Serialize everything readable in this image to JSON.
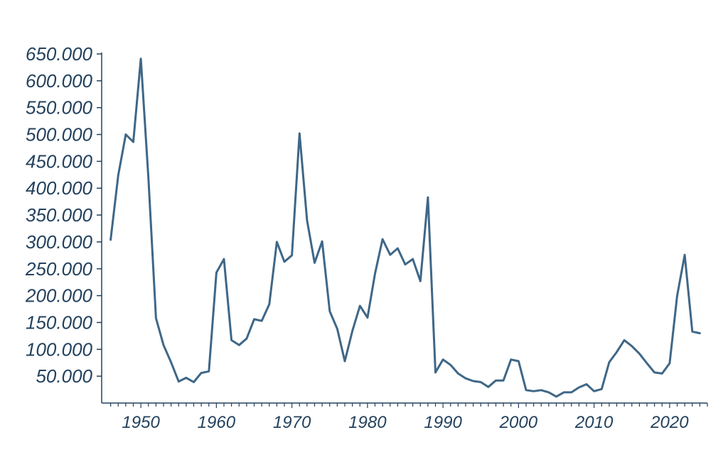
{
  "chart_data": {
    "type": "line",
    "title": "",
    "xlabel": "",
    "ylabel": "",
    "xlim": [
      1945,
      2025
    ],
    "ylim": [
      0,
      650000
    ],
    "grid": false,
    "legend": "none",
    "colors": {
      "line": "#3f6787",
      "axis": "#24425e",
      "ticklabel": "#24425e"
    },
    "xticks": [
      1950,
      1960,
      1970,
      1980,
      1990,
      2000,
      2010,
      2020
    ],
    "xtick_labels": [
      "1950",
      "1960",
      "1970",
      "1980",
      "1990",
      "2000",
      "2010",
      "2020"
    ],
    "yticks": [
      50000,
      100000,
      150000,
      200000,
      250000,
      300000,
      350000,
      400000,
      450000,
      500000,
      550000,
      600000,
      650000
    ],
    "ytick_labels": [
      "50.000",
      "100.000",
      "150.000",
      "200.000",
      "250.000",
      "300.000",
      "350.000",
      "400.000",
      "450.000",
      "500.000",
      "550.000",
      "600.000",
      "650.000"
    ],
    "series": [
      {
        "x": [
          1946,
          1947,
          1948,
          1949,
          1950,
          1951,
          1952,
          1953,
          1954,
          1955,
          1956,
          1957,
          1958,
          1959,
          1960,
          1961,
          1962,
          1963,
          1964,
          1965,
          1966,
          1967,
          1968,
          1969,
          1970,
          1971,
          1972,
          1973,
          1974,
          1975,
          1976,
          1977,
          1978,
          1979,
          1980,
          1981,
          1982,
          1983,
          1984,
          1985,
          1986,
          1987,
          1988,
          1989,
          1990,
          1991,
          1992,
          1993,
          1994,
          1995,
          1996,
          1997,
          1998,
          1999,
          2000,
          2001,
          2002,
          2003,
          2004,
          2005,
          2006,
          2007,
          2008,
          2009,
          2010,
          2011,
          2012,
          2013,
          2014,
          2015,
          2016,
          2017,
          2018,
          2019,
          2020,
          2021,
          2022,
          2023,
          2024
        ],
        "values": [
          304000,
          424000,
          500000,
          486000,
          641000,
          418000,
          158000,
          108000,
          76000,
          40000,
          47000,
          39000,
          56000,
          59000,
          243000,
          268000,
          117000,
          108000,
          120000,
          156000,
          153000,
          184000,
          300000,
          263000,
          275000,
          502000,
          340000,
          261000,
          301000,
          171000,
          138000,
          78000,
          134000,
          181000,
          159000,
          241000,
          305000,
          276000,
          288000,
          258000,
          268000,
          227000,
          383000,
          57000,
          81000,
          71000,
          55000,
          46000,
          41000,
          39000,
          30000,
          42000,
          42000,
          81000,
          78000,
          24000,
          22000,
          24000,
          20000,
          12000,
          20000,
          20000,
          29000,
          35000,
          22000,
          26000,
          76000,
          95000,
          117000,
          106000,
          92000,
          74000,
          57000,
          55000,
          74000,
          200000,
          276000,
          133000,
          130000
        ]
      }
    ]
  }
}
